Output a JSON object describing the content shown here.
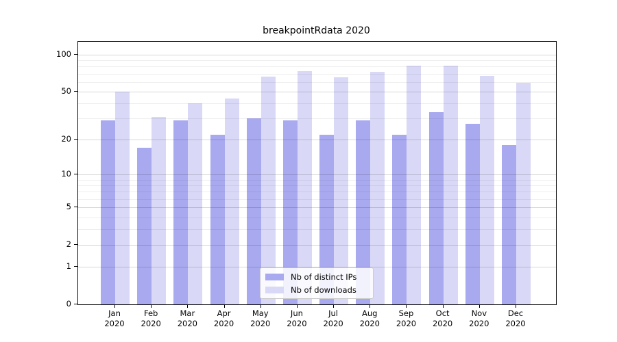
{
  "title": "breakpointRdata 2020",
  "legend": {
    "items": [
      {
        "label": "Nb of distinct IPs",
        "color": "#a9a9f0"
      },
      {
        "label": "Nb of downloads",
        "color": "#d9d9f7"
      }
    ]
  },
  "chart_data": {
    "type": "bar",
    "title": "breakpointRdata 2020",
    "categories": [
      "Jan",
      "Feb",
      "Mar",
      "Apr",
      "May",
      "Jun",
      "Jul",
      "Aug",
      "Sep",
      "Oct",
      "Nov",
      "Dec"
    ],
    "year": "2020",
    "series": [
      {
        "name": "Nb of distinct IPs",
        "color": "#a9a9f0",
        "values": [
          29,
          17,
          29,
          22,
          30,
          29,
          22,
          29,
          22,
          34,
          27,
          18
        ]
      },
      {
        "name": "Nb of downloads",
        "color": "#d9d9f7",
        "values": [
          50,
          31,
          40,
          44,
          66,
          73,
          65,
          72,
          81,
          81,
          67,
          59
        ]
      }
    ],
    "xlabel": "",
    "ylabel": "",
    "y_scale": "log10(value+1)",
    "ylim": [
      0,
      127
    ],
    "y_ticks_major": [
      0,
      1,
      2,
      5,
      10,
      20,
      50,
      100
    ],
    "y_gridlines_minor": [
      3,
      4,
      6,
      7,
      8,
      9,
      30,
      40,
      60,
      70,
      80,
      90
    ],
    "grid": true,
    "legend_position": "lower center"
  }
}
